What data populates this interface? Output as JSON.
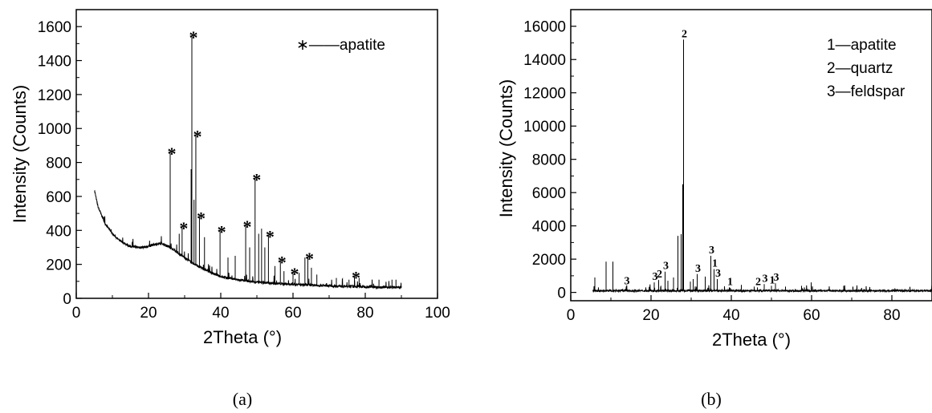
{
  "captions": [
    "(a)",
    "(b)"
  ],
  "chart_data": [
    {
      "type": "line",
      "xlabel": "2Theta (°)",
      "ylabel": "Intensity (Counts)",
      "xlim": [
        0,
        100
      ],
      "ylim": [
        0,
        1700
      ],
      "xticks": [
        0,
        20,
        40,
        60,
        80,
        100
      ],
      "yticks": [
        0,
        200,
        400,
        600,
        800,
        1000,
        1200,
        1400,
        1600
      ],
      "legend": "∗——apatite",
      "background": [
        [
          5,
          640
        ],
        [
          6,
          540
        ],
        [
          8,
          440
        ],
        [
          10,
          380
        ],
        [
          12,
          340
        ],
        [
          15,
          305
        ],
        [
          18,
          300
        ],
        [
          20,
          305
        ],
        [
          22,
          320
        ],
        [
          24,
          320
        ],
        [
          26,
          300
        ],
        [
          28,
          270
        ],
        [
          30,
          240
        ],
        [
          32,
          210
        ],
        [
          35,
          175
        ],
        [
          38,
          145
        ],
        [
          40,
          128
        ],
        [
          45,
          108
        ],
        [
          50,
          95
        ],
        [
          55,
          88
        ],
        [
          60,
          82
        ],
        [
          65,
          78
        ],
        [
          70,
          74
        ],
        [
          75,
          70
        ],
        [
          80,
          68
        ],
        [
          85,
          66
        ],
        [
          90,
          64
        ]
      ],
      "peaks": [
        [
          26.0,
          860
        ],
        [
          28.5,
          380
        ],
        [
          29.3,
          420
        ],
        [
          31.8,
          760
        ],
        [
          32.0,
          1545
        ],
        [
          32.6,
          580
        ],
        [
          33.1,
          960
        ],
        [
          34.1,
          480
        ],
        [
          35.5,
          360
        ],
        [
          39.8,
          400
        ],
        [
          42.0,
          240
        ],
        [
          44.0,
          250
        ],
        [
          46.9,
          430
        ],
        [
          48.0,
          300
        ],
        [
          49.5,
          705
        ],
        [
          50.5,
          380
        ],
        [
          51.3,
          410
        ],
        [
          52.2,
          300
        ],
        [
          53.2,
          370
        ],
        [
          55.0,
          190
        ],
        [
          56.5,
          220
        ],
        [
          57.5,
          160
        ],
        [
          60.0,
          150
        ],
        [
          61.7,
          150
        ],
        [
          63.3,
          240
        ],
        [
          64.1,
          240
        ],
        [
          65.1,
          180
        ],
        [
          66.6,
          140
        ],
        [
          72.0,
          120
        ],
        [
          75.5,
          110
        ],
        [
          77.0,
          130
        ],
        [
          78.3,
          120
        ],
        [
          83.8,
          110
        ],
        [
          87.4,
          110
        ],
        [
          88.5,
          110
        ]
      ],
      "markers": [
        [
          26.0,
          860
        ],
        [
          29.3,
          420
        ],
        [
          32.0,
          1545
        ],
        [
          33.1,
          960
        ],
        [
          34.1,
          480
        ],
        [
          39.8,
          400
        ],
        [
          46.9,
          430
        ],
        [
          49.5,
          705
        ],
        [
          53.2,
          370
        ],
        [
          56.5,
          220
        ],
        [
          60.0,
          150
        ],
        [
          64.1,
          240
        ],
        [
          77.0,
          130
        ]
      ],
      "marker_symbol": "*"
    },
    {
      "type": "line",
      "xlabel": "2Theta (°)",
      "ylabel": "Intensity (Counts)",
      "xlim": [
        0,
        90
      ],
      "ylim": [
        -500,
        17000
      ],
      "xticks": [
        0,
        20,
        40,
        60,
        80
      ],
      "yticks": [
        0,
        2000,
        4000,
        6000,
        8000,
        10000,
        12000,
        14000,
        16000
      ],
      "legend": [
        "1—apatite",
        "2—quartz",
        "3—feldspar"
      ],
      "baseline": 100,
      "peaks": [
        [
          6.0,
          900
        ],
        [
          8.8,
          1850
        ],
        [
          10.5,
          1850
        ],
        [
          13.8,
          350
        ],
        [
          20.8,
          600
        ],
        [
          21.9,
          750
        ],
        [
          23.5,
          1250
        ],
        [
          24.2,
          700
        ],
        [
          25.6,
          900
        ],
        [
          26.7,
          3400
        ],
        [
          27.5,
          3500
        ],
        [
          27.9,
          6500
        ],
        [
          28.1,
          15200
        ],
        [
          29.8,
          650
        ],
        [
          30.5,
          800
        ],
        [
          31.5,
          1100
        ],
        [
          33.5,
          950
        ],
        [
          34.9,
          2200
        ],
        [
          35.7,
          1400
        ],
        [
          36.5,
          800
        ],
        [
          39.5,
          300
        ],
        [
          42.5,
          450
        ],
        [
          45.7,
          350
        ],
        [
          46.5,
          300
        ],
        [
          48.2,
          500
        ],
        [
          50.0,
          400
        ],
        [
          51.0,
          550
        ],
        [
          53.5,
          350
        ],
        [
          57.5,
          400
        ],
        [
          59.9,
          600
        ],
        [
          68.0,
          400
        ],
        [
          73.0,
          200
        ],
        [
          81.0,
          150
        ]
      ],
      "labels": [
        [
          "3",
          13.8,
          350
        ],
        [
          "3",
          20.8,
          600
        ],
        [
          "2",
          21.9,
          750
        ],
        [
          "3",
          23.5,
          1250
        ],
        [
          "2",
          28.1,
          15200
        ],
        [
          "3",
          31.5,
          1100
        ],
        [
          "3",
          34.9,
          2200
        ],
        [
          "1",
          35.7,
          1400
        ],
        [
          "3",
          36.5,
          800
        ],
        [
          "1",
          39.5,
          300
        ],
        [
          "2",
          46.5,
          300
        ],
        [
          "3",
          48.2,
          500
        ],
        [
          "1",
          50.0,
          400
        ],
        [
          "3",
          51.0,
          550
        ]
      ]
    }
  ]
}
